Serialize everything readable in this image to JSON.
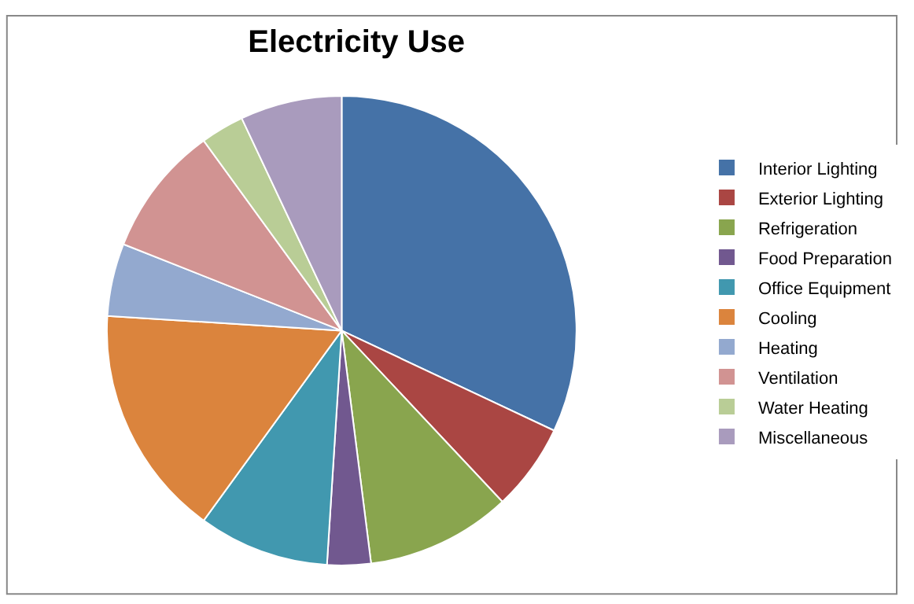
{
  "chart_data": {
    "type": "pie",
    "title": "Electricity Use",
    "categories": [
      "Interior Lighting",
      "Exterior Lighting",
      "Refrigeration",
      "Food Preparation",
      "Office Equipment",
      "Cooling",
      "Heating",
      "Ventilation",
      "Water Heating",
      "Miscellaneous"
    ],
    "values": [
      32,
      6,
      10,
      3,
      9,
      16,
      5,
      9,
      3,
      7
    ],
    "colors": [
      "#4572a7",
      "#aa4643",
      "#89a54e",
      "#71588f",
      "#4198af",
      "#db843d",
      "#93a9cf",
      "#d19392",
      "#b9cd96",
      "#a99bbd"
    ],
    "legend": "right"
  }
}
